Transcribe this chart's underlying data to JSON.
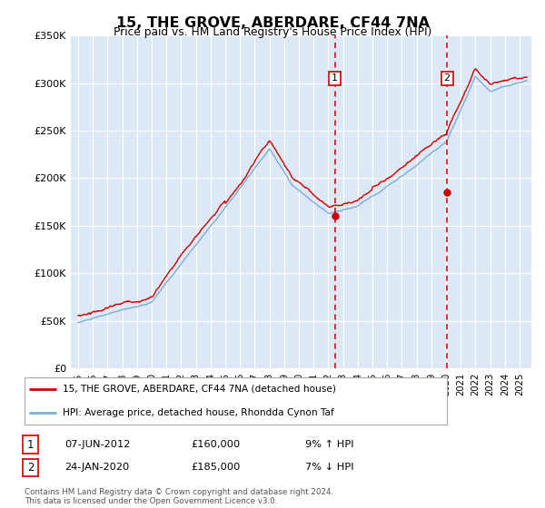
{
  "title": "15, THE GROVE, ABERDARE, CF44 7NA",
  "subtitle": "Price paid vs. HM Land Registry's House Price Index (HPI)",
  "legend_line1": "15, THE GROVE, ABERDARE, CF44 7NA (detached house)",
  "legend_line2": "HPI: Average price, detached house, Rhondda Cynon Taf",
  "footer": "Contains HM Land Registry data © Crown copyright and database right 2024.\nThis data is licensed under the Open Government Licence v3.0.",
  "sale1_label": "1",
  "sale1_date": "07-JUN-2012",
  "sale1_price": "£160,000",
  "sale1_hpi": "9% ↑ HPI",
  "sale2_label": "2",
  "sale2_date": "24-JAN-2020",
  "sale2_price": "£185,000",
  "sale2_hpi": "7% ↓ HPI",
  "ylim": [
    0,
    350000
  ],
  "yticks": [
    0,
    50000,
    100000,
    150000,
    200000,
    250000,
    300000,
    350000
  ],
  "background_color": "#dce8f5",
  "red_color": "#cc0000",
  "blue_color": "#7aafd4",
  "grid_color": "#ffffff",
  "marker1_x": 2012.44,
  "marker1_y": 160000,
  "marker2_x": 2020.07,
  "marker2_y": 185000,
  "vline1_x": 2012.44,
  "vline2_x": 2020.07,
  "xlim_left": 1994.5,
  "xlim_right": 2025.8
}
